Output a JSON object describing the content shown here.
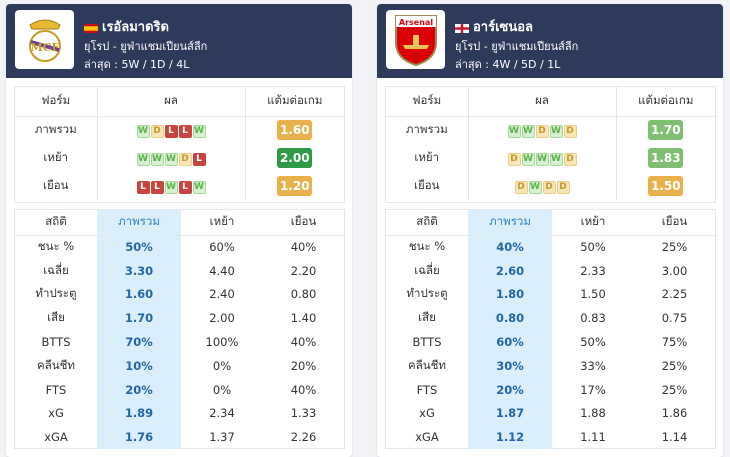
{
  "teams": [
    {
      "name": "เรอัลมาดริด",
      "flag": "spain-flag-icon",
      "logo": "real-madrid-crest-icon",
      "competition": "ยุโรป - ยูฟ่าแชมเปียนส์ลีก",
      "recent": "ล่าสุด : 5W / 1D / 4L",
      "form_header": [
        "ฟอร์ม",
        "ผล",
        "แต้มต่อเกม"
      ],
      "form_rows": [
        {
          "label": "ภาพรวม",
          "results": [
            "W",
            "D",
            "L",
            "L",
            "W"
          ],
          "ppg": "1.60",
          "ppg_color": "#e9b04b"
        },
        {
          "label": "เหย้า",
          "results": [
            "W",
            "W",
            "W",
            "D",
            "L"
          ],
          "ppg": "2.00",
          "ppg_color": "#2e9a47"
        },
        {
          "label": "เยือน",
          "results": [
            "L",
            "L",
            "W",
            "L",
            "W"
          ],
          "ppg": "1.20",
          "ppg_color": "#e9b04b"
        }
      ],
      "stats_header": [
        "สถิติ",
        "ภาพรวม",
        "เหย้า",
        "เยือน"
      ],
      "stats": [
        [
          "ชนะ %",
          "50%",
          "60%",
          "40%"
        ],
        [
          "เฉลี่ย",
          "3.30",
          "4.40",
          "2.20"
        ],
        [
          "ทำประตู",
          "1.60",
          "2.40",
          "0.80"
        ],
        [
          "เสีย",
          "1.70",
          "2.00",
          "1.40"
        ],
        [
          "BTTS",
          "70%",
          "100%",
          "40%"
        ],
        [
          "คลีนชีท",
          "10%",
          "0%",
          "20%"
        ],
        [
          "FTS",
          "20%",
          "0%",
          "40%"
        ],
        [
          "xG",
          "1.89",
          "2.34",
          "1.33"
        ],
        [
          "xGA",
          "1.76",
          "1.37",
          "2.26"
        ]
      ]
    },
    {
      "name": "อาร์เซนอล",
      "flag": "england-flag-icon",
      "logo": "arsenal-crest-icon",
      "logo_text": "Arsenal",
      "competition": "ยุโรป - ยูฟ่าแชมเปียนส์ลีก",
      "recent": "ล่าสุด : 4W / 5D / 1L",
      "form_header": [
        "ฟอร์ม",
        "ผล",
        "แต้มต่อเกม"
      ],
      "form_rows": [
        {
          "label": "ภาพรวม",
          "results": [
            "W",
            "W",
            "D",
            "W",
            "D"
          ],
          "ppg": "1.70",
          "ppg_color": "#7ebf71"
        },
        {
          "label": "เหย้า",
          "results": [
            "D",
            "W",
            "W",
            "W",
            "D"
          ],
          "ppg": "1.83",
          "ppg_color": "#7ebf71"
        },
        {
          "label": "เยือน",
          "results": [
            "D",
            "W",
            "D",
            "D"
          ],
          "ppg": "1.50",
          "ppg_color": "#e9b04b"
        }
      ],
      "stats_header": [
        "สถิติ",
        "ภาพรวม",
        "เหย้า",
        "เยือน"
      ],
      "stats": [
        [
          "ชนะ %",
          "40%",
          "50%",
          "25%"
        ],
        [
          "เฉลี่ย",
          "2.60",
          "2.33",
          "3.00"
        ],
        [
          "ทำประตู",
          "1.80",
          "1.50",
          "2.25"
        ],
        [
          "เสีย",
          "0.80",
          "0.83",
          "0.75"
        ],
        [
          "BTTS",
          "60%",
          "50%",
          "75%"
        ],
        [
          "คลีนชีท",
          "30%",
          "33%",
          "25%"
        ],
        [
          "FTS",
          "20%",
          "17%",
          "25%"
        ],
        [
          "xG",
          "1.87",
          "1.88",
          "1.86"
        ],
        [
          "xGA",
          "1.12",
          "1.11",
          "1.14"
        ]
      ]
    }
  ]
}
